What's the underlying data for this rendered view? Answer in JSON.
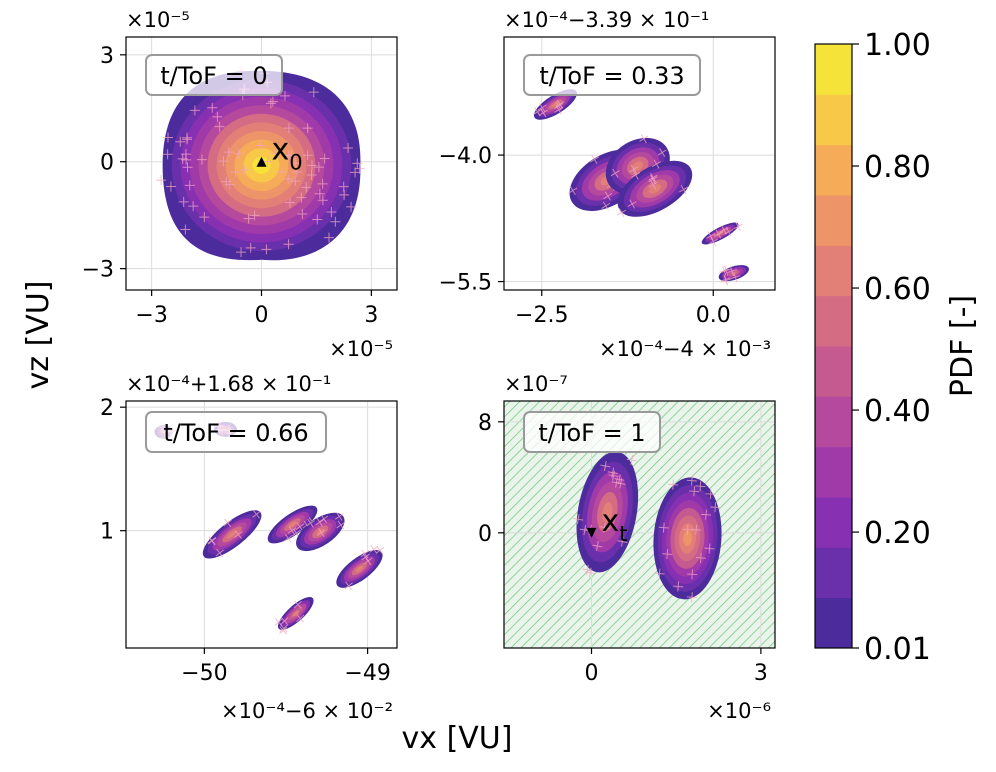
{
  "colors": {
    "levels": [
      "#4c2b9c",
      "#6a2fab",
      "#8830b2",
      "#a13aa9",
      "#b5499e",
      "#c55a91",
      "#d46c84",
      "#e27f77",
      "#ee9469",
      "#f5ab58",
      "#f8c848",
      "#f5e33a"
    ],
    "cross": "#f4a5c4",
    "hatch": "#7ec98a",
    "hatch_bg": "#e9f5ea"
  },
  "axes": {
    "xlabel": "vx [VU]",
    "ylabel": "vz [VU]"
  },
  "colorbar": {
    "label": "PDF [-]",
    "tick_labels": [
      "0.01",
      "0.20",
      "0.40",
      "0.60",
      "0.80",
      "1.00"
    ],
    "tick_values": [
      0.01,
      0.2,
      0.4,
      0.6,
      0.8,
      1.0
    ],
    "range": [
      0.01,
      1.0
    ]
  },
  "chart_data": [
    {
      "type": "scatter",
      "panel": "top-left",
      "annotation": "t/ToF = 0",
      "x_offset_text": "×10⁻⁵",
      "y_offset_text": "×10⁻⁵",
      "xlim": [
        -3.7,
        3.7
      ],
      "ylim": [
        -3.6,
        3.5
      ],
      "xticks": [
        -3,
        0,
        3
      ],
      "xtick_labels": [
        "−3",
        "0",
        "3"
      ],
      "yticks": [
        -3,
        0,
        3
      ],
      "ytick_labels": [
        "−3",
        "0",
        "3"
      ],
      "hatched": false,
      "marker": {
        "label": "x",
        "subscript": "0",
        "x": 0,
        "y": 0,
        "shape": "triangle-up"
      },
      "blobs": [
        {
          "cx": 0.0,
          "cy": -0.1,
          "rx": 2.7,
          "ry": 2.65,
          "angle": 0,
          "peak": 1.0,
          "levels": 11,
          "squarish": true
        }
      ]
    },
    {
      "type": "scatter",
      "panel": "top-right",
      "annotation": "t/ToF = 0.33",
      "x_offset_text": "×10⁻⁴−4 × 10⁻³",
      "y_offset_text": "×10⁻⁴−3.39 × 10⁻¹",
      "xlim": [
        -3.05,
        0.9
      ],
      "ylim": [
        -5.6,
        -2.6
      ],
      "xticks": [
        -2.5,
        0.0
      ],
      "xtick_labels": [
        "−2.5",
        "0.0"
      ],
      "yticks": [
        -4.0,
        -5.5
      ],
      "ytick_labels": [
        "−4.0",
        "−5.5"
      ],
      "hatched": false,
      "marker": null,
      "blobs": [
        {
          "cx": -2.3,
          "cy": -3.4,
          "rx": 0.36,
          "ry": 0.11,
          "angle": -32,
          "peak": 0.6,
          "levels": 6
        },
        {
          "cx": -1.55,
          "cy": -4.3,
          "rx": 0.6,
          "ry": 0.3,
          "angle": -32,
          "peak": 0.62,
          "levels": 6
        },
        {
          "cx": -1.1,
          "cy": -4.13,
          "rx": 0.5,
          "ry": 0.3,
          "angle": -32,
          "peak": 0.64,
          "levels": 6
        },
        {
          "cx": -0.85,
          "cy": -4.4,
          "rx": 0.6,
          "ry": 0.26,
          "angle": -30,
          "peak": 0.62,
          "levels": 6
        },
        {
          "cx": 0.1,
          "cy": -4.93,
          "rx": 0.3,
          "ry": 0.07,
          "angle": -28,
          "peak": 0.6,
          "levels": 5
        },
        {
          "cx": 0.3,
          "cy": -5.4,
          "rx": 0.23,
          "ry": 0.08,
          "angle": -18,
          "peak": 0.58,
          "levels": 5
        }
      ]
    },
    {
      "type": "scatter",
      "panel": "bottom-left",
      "annotation": "t/ToF = 0.66",
      "x_offset_text": "×10⁻⁴−6 × 10⁻²",
      "y_offset_text": "×10⁻⁴+1.68 × 10⁻¹",
      "xlim": [
        -50.48,
        -48.82
      ],
      "ylim": [
        0.05,
        2.05
      ],
      "xticks": [
        -50,
        -49
      ],
      "xtick_labels": [
        "−50",
        "−49"
      ],
      "yticks": [
        1,
        2
      ],
      "ytick_labels": [
        "1",
        "2"
      ],
      "hatched": false,
      "marker": null,
      "blobs": [
        {
          "cx": -50.25,
          "cy": 1.8,
          "rx": 0.055,
          "ry": 0.055,
          "angle": 0,
          "peak": 0.52,
          "levels": 4
        },
        {
          "cx": -49.87,
          "cy": 1.82,
          "rx": 0.07,
          "ry": 0.06,
          "angle": 0,
          "peak": 0.52,
          "levels": 4
        },
        {
          "cx": -49.83,
          "cy": 0.97,
          "rx": 0.22,
          "ry": 0.1,
          "angle": -38,
          "peak": 0.64,
          "levels": 6
        },
        {
          "cx": -49.46,
          "cy": 1.05,
          "rx": 0.18,
          "ry": 0.085,
          "angle": -35,
          "peak": 0.62,
          "levels": 6
        },
        {
          "cx": -49.29,
          "cy": 0.99,
          "rx": 0.17,
          "ry": 0.11,
          "angle": -34,
          "peak": 0.64,
          "levels": 6
        },
        {
          "cx": -49.05,
          "cy": 0.69,
          "rx": 0.17,
          "ry": 0.09,
          "angle": -37,
          "peak": 0.63,
          "levels": 6
        },
        {
          "cx": -49.44,
          "cy": 0.33,
          "rx": 0.14,
          "ry": 0.065,
          "angle": -42,
          "peak": 0.6,
          "levels": 5
        }
      ]
    },
    {
      "type": "scatter",
      "panel": "bottom-right",
      "annotation": "t/ToF = 1",
      "x_offset_text": "×10⁻⁶",
      "y_offset_text": "×10⁻⁷",
      "xlim": [
        -1.55,
        3.25
      ],
      "ylim": [
        -8.3,
        9.5
      ],
      "xticks": [
        0,
        3
      ],
      "xtick_labels": [
        "0",
        "3"
      ],
      "yticks": [
        0,
        8
      ],
      "ytick_labels": [
        "0",
        "8"
      ],
      "hatched": true,
      "marker": {
        "label": "x",
        "subscript": "t",
        "x": 0,
        "y": 0,
        "shape": "triangle-down"
      },
      "blobs": [
        {
          "cx": 0.28,
          "cy": 1.5,
          "rx": 0.52,
          "ry": 4.4,
          "angle": 10,
          "peak": 0.6,
          "levels": 6
        },
        {
          "cx": 1.7,
          "cy": -0.4,
          "rx": 0.6,
          "ry": 4.4,
          "angle": 4,
          "peak": 0.74,
          "levels": 8
        }
      ]
    }
  ]
}
